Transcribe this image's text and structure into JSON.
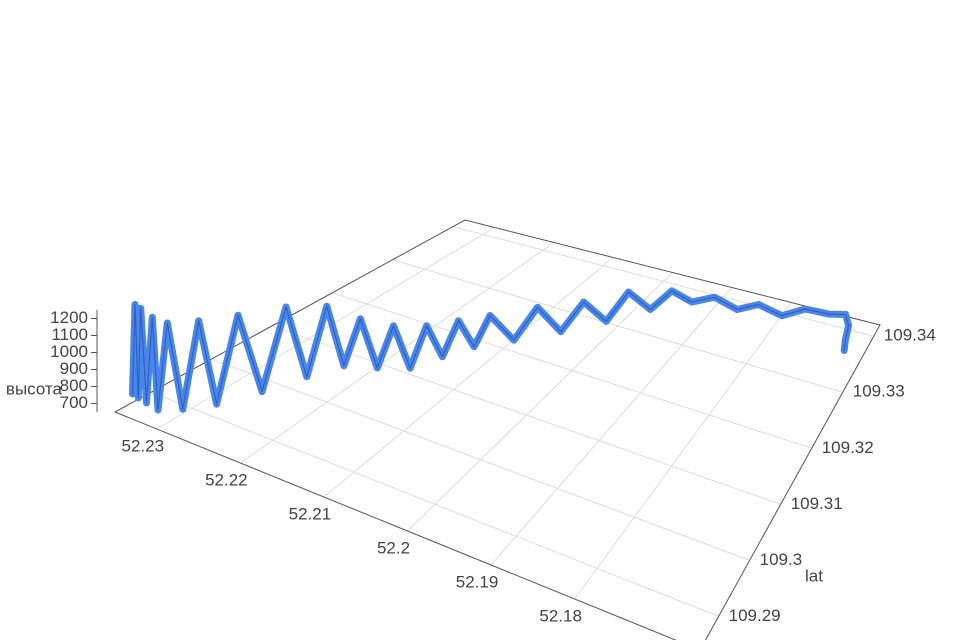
{
  "chart_data": {
    "type": "line3d",
    "xlabel": null,
    "ylabel": "lat",
    "zlabel": "высота",
    "xlim": [
      52.165,
      52.235
    ],
    "ylim": [
      109.284,
      109.342
    ],
    "zlim": [
      650,
      1250
    ],
    "xticks": [
      52.23,
      52.22,
      52.21,
      52.2,
      52.19,
      52.18
    ],
    "yticks": [
      109.34,
      109.33,
      109.32,
      109.31,
      109.3,
      109.29
    ],
    "zticks": [
      700,
      800,
      900,
      1000,
      1100,
      1200
    ],
    "grid": true,
    "series": [
      {
        "color": "#4a86e8",
        "x": [
          52.235,
          52.2347,
          52.2343,
          52.234,
          52.2333,
          52.2326,
          52.2319,
          52.2312,
          52.2301,
          52.229,
          52.228,
          52.2266,
          52.2252,
          52.2238,
          52.2224,
          52.221,
          52.2196,
          52.2182,
          52.2168,
          52.2154,
          52.214,
          52.2126,
          52.2112,
          52.2098,
          52.2084,
          52.207,
          52.2056,
          52.2042,
          52.2028,
          52.2014,
          52.2,
          52.1986,
          52.1972,
          52.1958,
          52.193,
          52.1895,
          52.186,
          52.1825,
          52.179,
          52.1755,
          52.172,
          52.1692,
          52.1678,
          52.1671,
          52.1664
        ],
        "y": [
          109.2869,
          109.2869,
          109.2869,
          109.2869,
          109.2869,
          109.2869,
          109.2869,
          109.2875,
          109.2886,
          109.2898,
          109.2915,
          109.2933,
          109.2956,
          109.2979,
          109.2997,
          109.3014,
          109.3026,
          109.3037,
          109.3049,
          109.306,
          109.3072,
          109.3084,
          109.3095,
          109.3107,
          109.3118,
          109.313,
          109.3159,
          109.3188,
          109.3217,
          109.3246,
          109.3275,
          109.3304,
          109.3333,
          109.3362,
          109.3368,
          109.3371,
          109.3374,
          109.3374,
          109.3379,
          109.3385,
          109.3391,
          109.3391,
          109.3374,
          109.335,
          109.3333
        ],
        "z": [
          700,
          1240,
          690,
          1230,
          680,
          1200,
          665,
          1180,
          670,
          1190,
          680,
          1200,
          720,
          1210,
          770,
          1190,
          820,
          1110,
          800,
          1060,
          790,
          1050,
          850,
          1070,
          900,
          1090,
          880,
          1040,
          820,
          960,
          760,
          900,
          700,
          760,
          690,
          760,
          700,
          780,
          720,
          790,
          770,
          800,
          800,
          790,
          795
        ]
      }
    ]
  }
}
